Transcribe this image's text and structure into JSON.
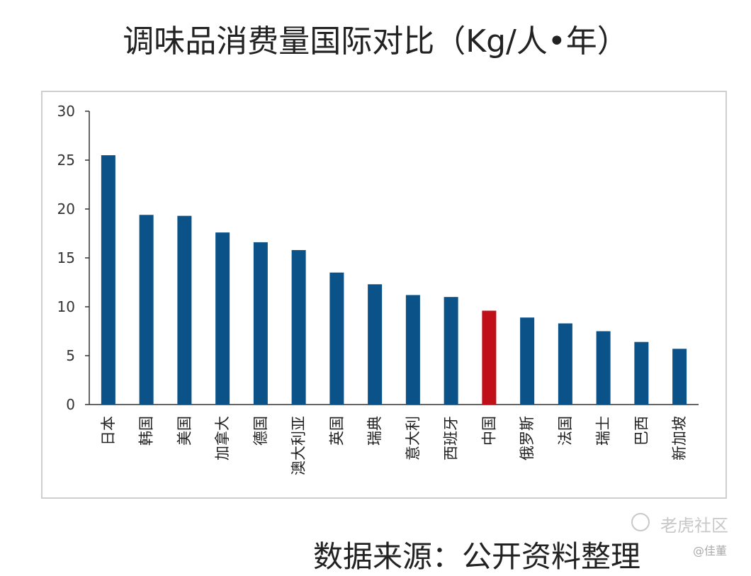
{
  "title": "调味品消费量国际对比（Kg/人•年）",
  "source": "数据来源：公开资料整理",
  "watermark": {
    "text": "老虎社区",
    "sub": "@佳董"
  },
  "colors": {
    "bar": "#0b5289",
    "highlight": "#c0111b",
    "axis": "#333333"
  },
  "chart_data": {
    "type": "bar",
    "title": "调味品消费量国际对比（Kg/人•年）",
    "categories": [
      "日本",
      "韩国",
      "美国",
      "加拿大",
      "德国",
      "澳大利亚",
      "英国",
      "瑞典",
      "意大利",
      "西班牙",
      "中国",
      "俄罗斯",
      "法国",
      "瑞士",
      "巴西",
      "新加坡"
    ],
    "values": [
      25.5,
      19.4,
      19.3,
      17.6,
      16.6,
      15.8,
      13.5,
      12.3,
      11.2,
      11.0,
      9.6,
      8.9,
      8.3,
      7.5,
      6.4,
      5.7
    ],
    "highlight_category": "中国",
    "ylim": [
      0,
      30
    ],
    "yticks": [
      0,
      5,
      10,
      15,
      20,
      25,
      30
    ],
    "grid": false,
    "legend": "none"
  }
}
